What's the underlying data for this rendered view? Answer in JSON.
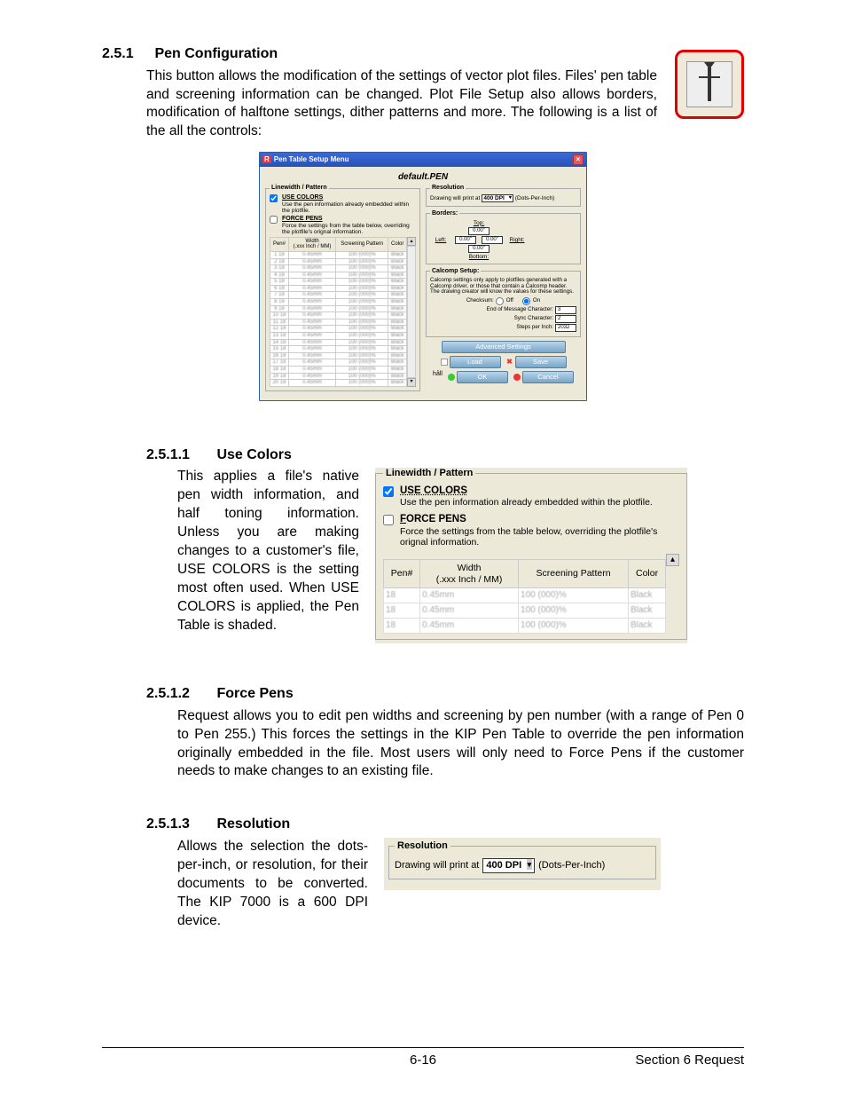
{
  "s251": {
    "num": "2.5.1",
    "title": "Pen Configuration",
    "body": "This button allows the modification of the settings of vector plot files. Files' pen table and screening information can be changed.  Plot File Setup also allows borders, modification of halftone settings, dither patterns and more. The following is a list of the all the controls:"
  },
  "pen_menu": {
    "title": "Pen Table Setup Menu",
    "filename": "default.PEN",
    "lw_legend": "Linewidth / Pattern",
    "use_colors_cap": "USE COLORS",
    "use_colors_checked": true,
    "use_colors_desc": "Use the pen information already embedded within the plotfile.",
    "force_pens_cap": "FORCE PENS",
    "force_pens_checked": false,
    "force_pens_desc": "Force the settings from the table below, overriding the plotfile's orignal information.",
    "cols": [
      "Pen#",
      "Width\n(.xxx Inch / MM)",
      "Screening Pattern",
      "Color"
    ],
    "row_sample": {
      "pen": "18",
      "width": "0.45mm",
      "scr": "100 (000)%",
      "col": "Black"
    },
    "row_count": 20,
    "res_legend": "Resolution",
    "res_before": "Drawing will print at",
    "res_dd": "400 DPI",
    "res_after": "(Dots-Per-Inch)",
    "borders_legend": "Borders:",
    "b_top": "Top:",
    "b_left": "Left:",
    "b_right": "Right:",
    "b_bottom": "Bottom:",
    "b_val": "0.00\"",
    "cal_legend": "Calcomp Setup:",
    "cal_desc": "Calcomp settings only apply to plotfiles generated with a Calcomp driver, or those that contain a Calcomp header. The drawing creator will know the values for these settings.",
    "cal_checksum": "Checksum:",
    "cal_off": "Off",
    "cal_on": "On",
    "cal_eom": "End of Message Character:",
    "cal_eom_v": "3",
    "cal_sync": "Sync Character:",
    "cal_sync_v": "2",
    "cal_spi": "Steps per Inch:",
    "cal_spi_v": "2032",
    "btn_adv": "Advanced Settings",
    "btn_load": "Load",
    "btn_save": "Save",
    "btn_ok": "OK",
    "btn_cancel": "Cancel"
  },
  "s2511": {
    "num": "2.5.1.1",
    "title": "Use Colors",
    "body": "This applies a file's native pen width information, and half toning information.  Unless you are making changes to a customer's file, USE COLORS is the setting most often used.  When USE COLORS is applied, the Pen Table is shaded."
  },
  "zoom": {
    "legend": "Linewidth / Pattern",
    "use_colors_cap": "USE COLORS",
    "use_colors_desc": "Use the pen information already embedded within the plotfile.",
    "force_pens_cap": "FORCE PENS",
    "force_pens_desc": "Force the settings from the table below, overriding the plotfile's orignal information.",
    "cols": [
      "Pen#",
      "Width\n(.xxx Inch / MM)",
      "Screening Pattern",
      "Color"
    ],
    "row_sample": {
      "pen": "18",
      "width": "0.45mm",
      "scr": "100 (000)%",
      "col": "Black"
    },
    "row_count": 3
  },
  "s2512": {
    "num": "2.5.1.2",
    "title": "Force Pens",
    "body": "Request allows you to edit pen widths and screening by pen number (with a range of Pen 0 to Pen 255.) This forces the settings in the KIP Pen Table to override the pen information originally embedded in the file.  Most users will only need to Force Pens if the customer needs to make changes to an existing file."
  },
  "s2513": {
    "num": "2.5.1.3",
    "title": "Resolution",
    "body": "Allows the selection the dots-per-inch, or resolution, for their documents to be converted. The KIP 7000 is a 600 DPI device."
  },
  "res_zoom": {
    "legend": "Resolution",
    "before": "Drawing will print at",
    "dd": "400 DPI",
    "after": "(Dots-Per-Inch)"
  },
  "footer": {
    "page": "6-16",
    "section": "Section 6    Request"
  }
}
